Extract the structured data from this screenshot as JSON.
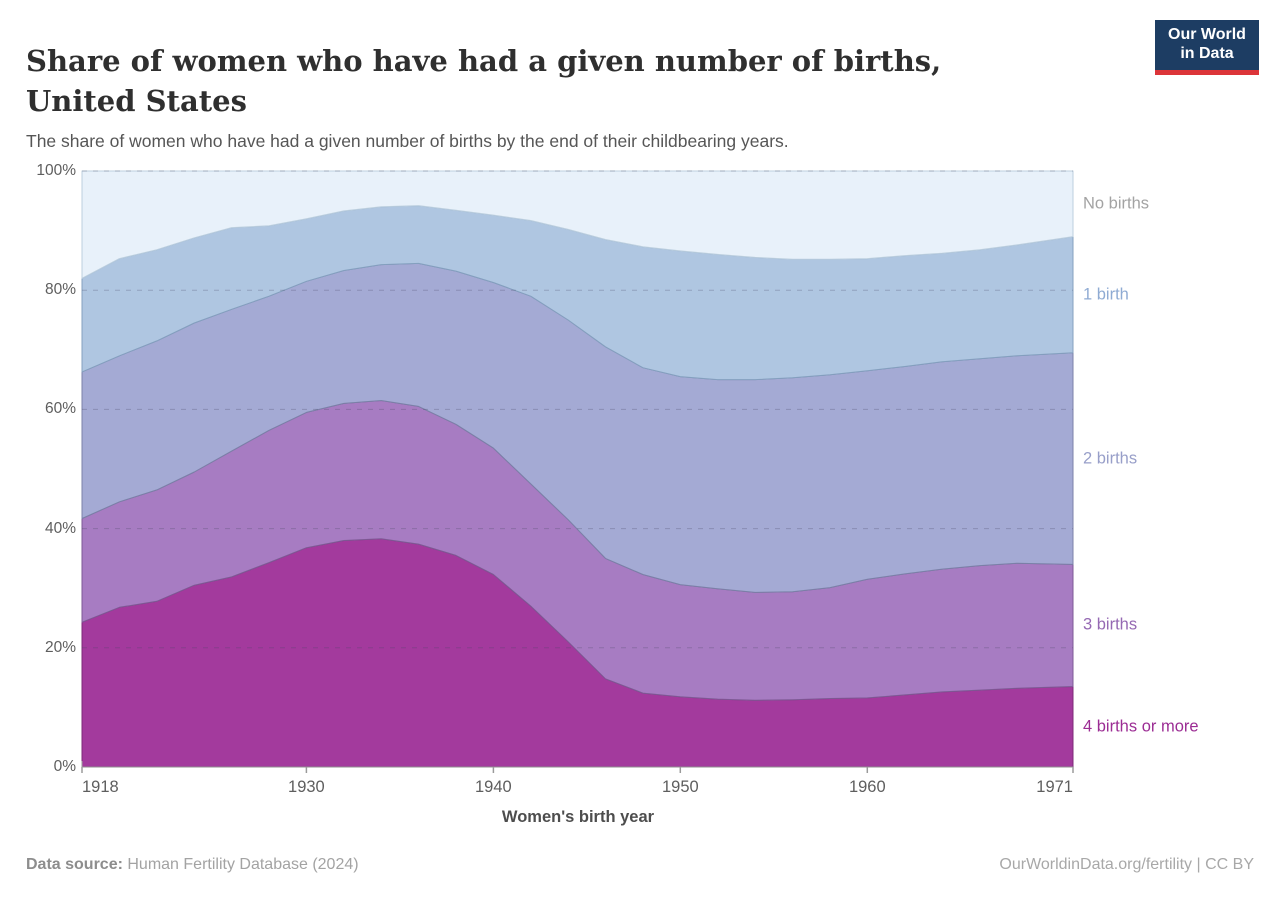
{
  "header": {
    "title": "Share of women who have had a given number of births, United States",
    "subtitle": "The share of women who have had a given number of births by the end of their childbearing years.",
    "logo": {
      "line1": "Our World",
      "line2": "in Data",
      "bg_color": "#1d3d63",
      "bar_color": "#dc3539"
    }
  },
  "chart_data": {
    "type": "area",
    "stacked": true,
    "title": "Share of women who have had a given number of births, United States",
    "xlabel": "Women's birth year",
    "ylabel": "",
    "ylim": [
      0,
      100
    ],
    "grid": "dashed-horizontal",
    "legend_position": "right-inline",
    "x": [
      1918,
      1920,
      1922,
      1924,
      1926,
      1928,
      1930,
      1932,
      1934,
      1936,
      1938,
      1940,
      1942,
      1944,
      1946,
      1948,
      1950,
      1952,
      1954,
      1956,
      1958,
      1960,
      1962,
      1964,
      1966,
      1968,
      1971
    ],
    "x_ticks": [
      1918,
      1930,
      1940,
      1950,
      1960,
      1971
    ],
    "y_ticks": [
      {
        "value": 0,
        "label": "0%"
      },
      {
        "value": 20,
        "label": "20%"
      },
      {
        "value": 40,
        "label": "40%"
      },
      {
        "value": 60,
        "label": "60%"
      },
      {
        "value": 80,
        "label": "80%"
      },
      {
        "value": 100,
        "label": "100%"
      }
    ],
    "series": [
      {
        "name": "4 births or more",
        "fill": "#a33a9d",
        "stroke": "#7c2b78",
        "label_color": "#9c2d94",
        "values": [
          24.3,
          26.8,
          27.8,
          30.5,
          31.9,
          34.3,
          36.8,
          38.0,
          38.3,
          37.4,
          35.5,
          32.3,
          27.0,
          21.0,
          14.8,
          12.4,
          11.8,
          11.4,
          11.2,
          11.3,
          11.5,
          11.6,
          12.1,
          12.6,
          12.9,
          13.2,
          13.5
        ]
      },
      {
        "name": "3 births",
        "fill": "#a77cc2",
        "stroke": "#7e5a95",
        "label_color": "#9569b3",
        "values": [
          17.4,
          17.7,
          18.7,
          19.0,
          21.1,
          22.2,
          22.7,
          23.0,
          23.2,
          23.1,
          22.0,
          21.2,
          20.5,
          20.5,
          20.2,
          19.9,
          18.8,
          18.5,
          18.1,
          18.1,
          18.6,
          19.9,
          20.3,
          20.6,
          20.9,
          21.0,
          20.5
        ]
      },
      {
        "name": "2 births",
        "fill": "#a4aad4",
        "stroke": "#7b81a8",
        "label_color": "#989fc9",
        "values": [
          24.6,
          24.5,
          25.0,
          25.0,
          23.8,
          22.5,
          22.0,
          22.3,
          22.8,
          24.0,
          25.7,
          27.8,
          31.5,
          33.5,
          35.5,
          34.7,
          34.9,
          35.1,
          35.7,
          35.9,
          35.7,
          35.0,
          34.8,
          34.8,
          34.7,
          34.8,
          35.5
        ]
      },
      {
        "name": "1 birth",
        "fill": "#afc6e1",
        "stroke": "#84a0bf",
        "label_color": "#8fabd3",
        "values": [
          15.7,
          16.3,
          15.3,
          14.3,
          13.7,
          11.8,
          10.5,
          10.0,
          9.7,
          9.7,
          10.2,
          11.3,
          12.7,
          15.2,
          18.0,
          20.3,
          21.1,
          21.0,
          20.5,
          19.9,
          19.4,
          18.8,
          18.6,
          18.2,
          18.3,
          18.6,
          19.5
        ]
      },
      {
        "name": "No births",
        "fill": "#e8f1fa",
        "stroke": "#bccfdf",
        "label_color": "#a3a3a3",
        "values": [
          18.0,
          14.7,
          13.2,
          11.2,
          9.5,
          9.2,
          8.0,
          6.7,
          6.0,
          5.8,
          6.6,
          7.4,
          8.3,
          9.8,
          11.5,
          12.7,
          13.4,
          14.0,
          14.5,
          14.8,
          14.8,
          14.7,
          14.2,
          13.8,
          13.2,
          12.4,
          11.0
        ]
      }
    ]
  },
  "footer": {
    "source_label": "Data source:",
    "source_value": " Human Fertility Database (2024)",
    "credit": "OurWorldinData.org/fertility | CC BY"
  }
}
